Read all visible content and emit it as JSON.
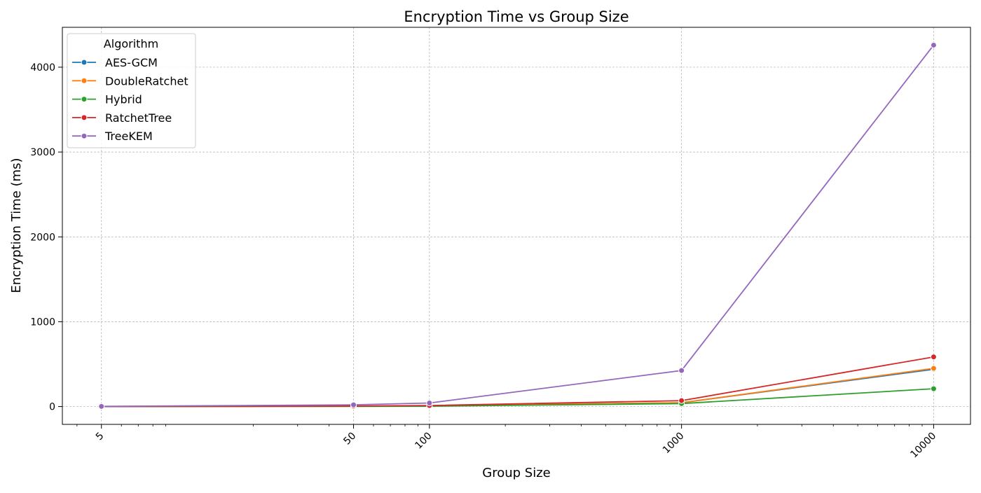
{
  "chart_data": {
    "type": "line",
    "title": "Encryption Time vs Group Size",
    "xlabel": "Group Size",
    "ylabel": "Encryption Time (ms)",
    "x_scale": "log",
    "xlim": [
      3.5,
      14000
    ],
    "ylim": [
      -210,
      4470
    ],
    "x": [
      5,
      50,
      100,
      1000,
      10000
    ],
    "x_tick_labels": [
      "5",
      "50",
      "100",
      "1000",
      "10000"
    ],
    "y_ticks": [
      0,
      1000,
      2000,
      3000,
      4000
    ],
    "y_tick_labels": [
      "0",
      "1000",
      "2000",
      "3000",
      "4000"
    ],
    "grid": true,
    "legend_title": "Algorithm",
    "legend_position": "top-left",
    "series": [
      {
        "name": "AES-GCM",
        "color": "#1f77b4",
        "values": [
          0.2,
          4,
          9,
          45,
          440
        ]
      },
      {
        "name": "DoubleRatchet",
        "color": "#ff7f0e",
        "values": [
          0.2,
          4,
          9,
          45,
          450
        ]
      },
      {
        "name": "Hybrid",
        "color": "#2ca02c",
        "values": [
          0.1,
          2,
          4,
          35,
          210
        ]
      },
      {
        "name": "RatchetTree",
        "color": "#d62728",
        "values": [
          0.3,
          6,
          12,
          70,
          585
        ]
      },
      {
        "name": "TreeKEM",
        "color": "#9467bd",
        "values": [
          2,
          20,
          42,
          425,
          4260
        ]
      }
    ]
  }
}
